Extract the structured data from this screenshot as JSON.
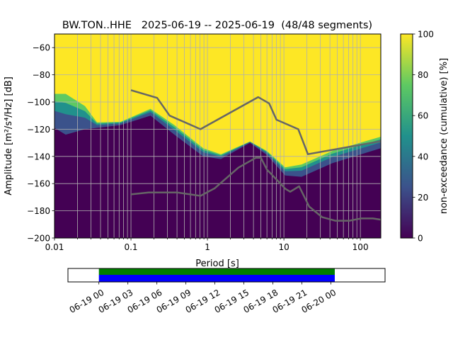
{
  "chart_data": {
    "type": "heatmap",
    "title": "BW.TON..HHE   2025-06-19 -- 2025-06-19  (48/48 segments)",
    "xlabel": "Period [s]",
    "ylabel": "Amplitude [m²/s⁴/Hz] [dB]",
    "xscale": "log",
    "xlim": [
      0.01,
      185
    ],
    "ylim": [
      -200,
      -50
    ],
    "grid": true,
    "xticks": [
      0.01,
      0.1,
      1,
      10,
      100
    ],
    "xtick_labels": [
      "0.01",
      "0.1",
      "1",
      "10",
      "100"
    ],
    "yticks": [
      -60,
      -80,
      -100,
      -120,
      -140,
      -160,
      -180,
      -200
    ],
    "ytick_labels": [
      "−60",
      "−80",
      "−100",
      "−120",
      "−140",
      "−160",
      "−180",
      "−200"
    ],
    "pdf_boundaries": {
      "period": [
        0.01,
        0.014,
        0.025,
        0.036,
        0.073,
        0.18,
        0.37,
        0.88,
        1.5,
        3.6,
        6,
        10.4,
        17,
        43,
        185
      ],
      "zero_pct_top_db": [
        -119,
        -124,
        -120,
        -119,
        -117,
        -110,
        -124,
        -140,
        -142,
        -130,
        -139,
        -154,
        -155,
        -145,
        -134
      ],
      "full_pct_bottom_db": [
        -94,
        -94,
        -103,
        -115,
        -114.6,
        -105,
        -117,
        -134,
        -138.5,
        -129,
        -136,
        -148,
        -146,
        -136,
        -125.5
      ]
    },
    "colorbar": {
      "label": "non-exceedance (cumulative) [%]",
      "range": [
        0,
        100
      ],
      "ticks": [
        "0",
        "20",
        "40",
        "60",
        "80",
        "100"
      ],
      "colormap": [
        "#440154",
        "#3b528b",
        "#21918c",
        "#5ec962",
        "#fde725"
      ]
    },
    "noise_models": [
      {
        "name": "NHNM",
        "color": "#666666",
        "period": [
          0.1,
          0.22,
          0.32,
          0.81,
          4.6,
          6.4,
          8,
          15.4,
          20.6,
          185
        ],
        "db": [
          -91.3,
          -97,
          -110,
          -120,
          -96.4,
          -101,
          -113,
          -120,
          -138.4,
          -128.8
        ]
      },
      {
        "name": "NLNM",
        "color": "#666666",
        "period": [
          0.1,
          0.17,
          0.4,
          0.81,
          1.24,
          2.54,
          4.3,
          5,
          6,
          10.5,
          12.1,
          15.8,
          21.4,
          31.6,
          46.8,
          71.6,
          102,
          146,
          185
        ],
        "db": [
          -167.9,
          -166.5,
          -166.5,
          -169,
          -163.5,
          -148.3,
          -141,
          -141,
          -149.7,
          -163.9,
          -166,
          -162,
          -176.9,
          -184.7,
          -187.3,
          -187.3,
          -185.6,
          -185.6,
          -186.5
        ]
      }
    ],
    "timeline": {
      "tick_labels": [
        "06-19 00",
        "06-19 03",
        "06-19 06",
        "06-19 09",
        "06-19 12",
        "06-19 15",
        "06-19 18",
        "06-19 21",
        "06-20 00"
      ],
      "axis_range_hours": [
        -3.2,
        29.6
      ],
      "coverage_hours": [
        0,
        24.4
      ],
      "coverage_colors": [
        "#008000",
        "#0000ff"
      ]
    }
  }
}
